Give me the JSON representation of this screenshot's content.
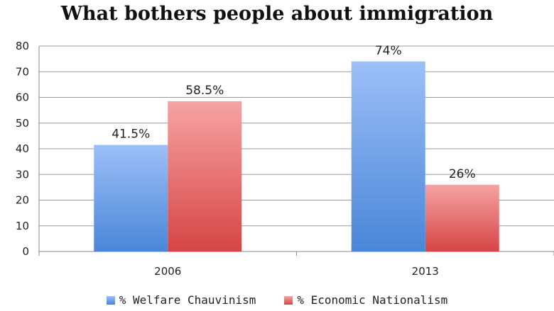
{
  "chart_data": {
    "type": "bar",
    "title": "What bothers people about immigration",
    "categories": [
      "2006",
      "2013"
    ],
    "series": [
      {
        "name": "% Welfare Chauvinism",
        "values": [
          41.5,
          74
        ],
        "labels": [
          "41.5%",
          "74%"
        ],
        "color_top": "#9dbff7",
        "color_bottom": "#4a86d8"
      },
      {
        "name": "% Economic Nationalism",
        "values": [
          58.5,
          26
        ],
        "labels": [
          "58.5%",
          "26%"
        ],
        "color_top": "#f6a3a3",
        "color_bottom": "#d64545"
      }
    ],
    "y_ticks": [
      "0",
      "10",
      "20",
      "30",
      "40",
      "50",
      "60",
      "70",
      "80"
    ],
    "ylim": [
      0,
      80
    ],
    "grid": true,
    "legend": "bottom"
  }
}
